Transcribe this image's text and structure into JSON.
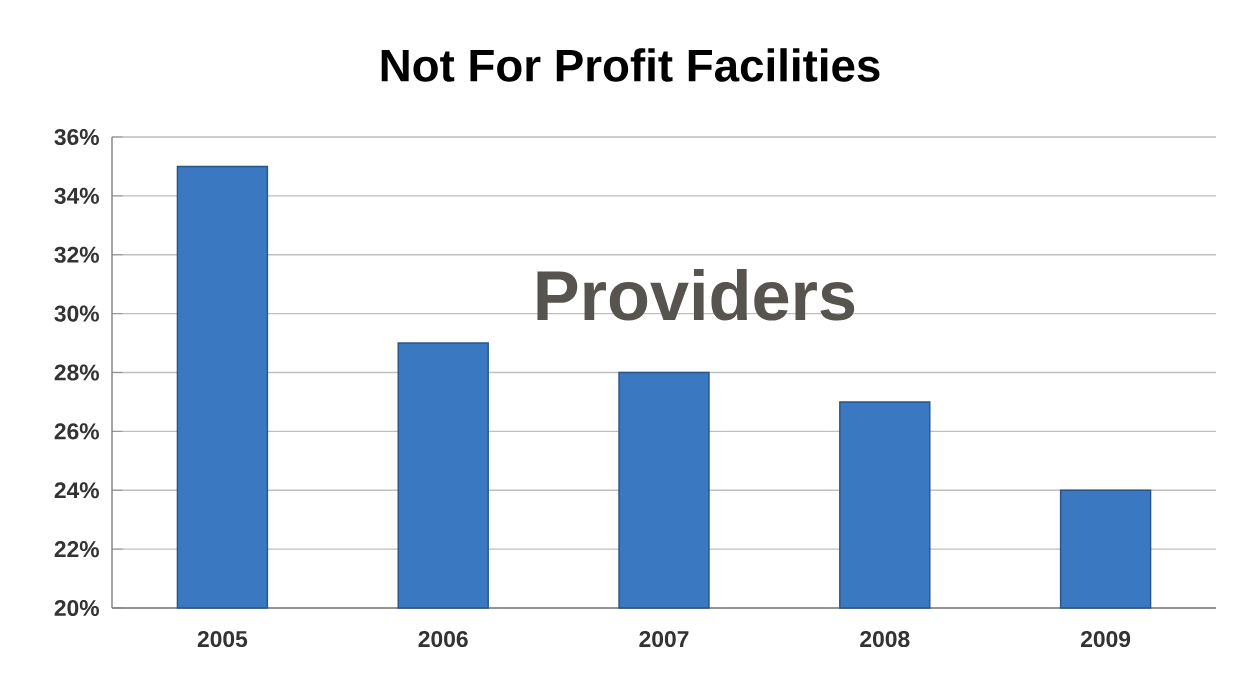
{
  "chart_data": {
    "type": "bar",
    "title": "Not For Profit Facilities",
    "categories": [
      "2005",
      "2006",
      "2007",
      "2008",
      "2009"
    ],
    "values": [
      35,
      29,
      28,
      27,
      24
    ],
    "color": "#3a78c2",
    "ylim": [
      20,
      36
    ],
    "yticks": [
      {
        "value": 20,
        "label": "20%"
      },
      {
        "value": 22,
        "label": "22%"
      },
      {
        "value": 24,
        "label": "24%"
      },
      {
        "value": 26,
        "label": "26%"
      },
      {
        "value": 28,
        "label": "28%"
      },
      {
        "value": 30,
        "label": "30%"
      },
      {
        "value": 32,
        "label": "32%"
      },
      {
        "value": 34,
        "label": "34%"
      },
      {
        "value": 36,
        "label": "36%"
      }
    ],
    "grid": "y",
    "annotations": [
      "Providers"
    ]
  }
}
